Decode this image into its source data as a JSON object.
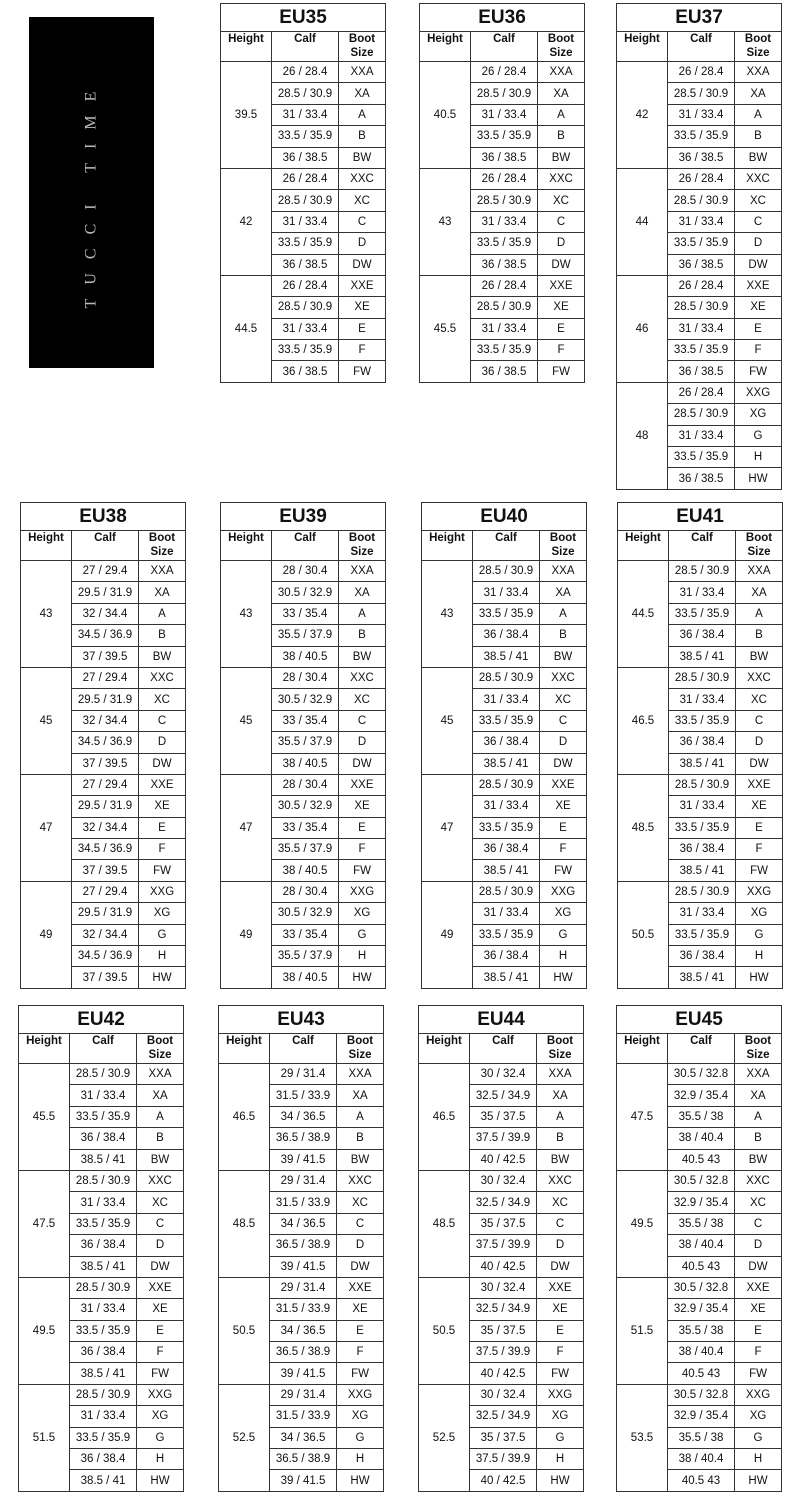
{
  "logo_text": "TUCCI TIME",
  "headers": {
    "height": "Height",
    "calf": "Calf",
    "boot_size": "Boot Size"
  },
  "tables": [
    {
      "title": "EU35",
      "calf_ranges": [
        "26 / 28.4",
        "28.5 / 30.9",
        "31 / 33.4",
        "33.5 / 35.9",
        "36 / 38.5"
      ],
      "groups": [
        {
          "height": "39.5",
          "sizes": [
            "XXA",
            "XA",
            "A",
            "B",
            "BW"
          ]
        },
        {
          "height": "42",
          "sizes": [
            "XXC",
            "XC",
            "C",
            "D",
            "DW"
          ]
        },
        {
          "height": "44.5",
          "sizes": [
            "XXE",
            "XE",
            "E",
            "F",
            "FW"
          ]
        }
      ]
    },
    {
      "title": "EU36",
      "calf_ranges": [
        "26 / 28.4",
        "28.5 / 30.9",
        "31 / 33.4",
        "33.5 / 35.9",
        "36 / 38.5"
      ],
      "groups": [
        {
          "height": "40.5",
          "sizes": [
            "XXA",
            "XA",
            "A",
            "B",
            "BW"
          ]
        },
        {
          "height": "43",
          "sizes": [
            "XXC",
            "XC",
            "C",
            "D",
            "DW"
          ]
        },
        {
          "height": "45.5",
          "sizes": [
            "XXE",
            "XE",
            "E",
            "F",
            "FW"
          ]
        }
      ]
    },
    {
      "title": "EU37",
      "calf_ranges": [
        "26 / 28.4",
        "28.5 / 30.9",
        "31 / 33.4",
        "33.5 / 35.9",
        "36 / 38.5"
      ],
      "groups": [
        {
          "height": "42",
          "sizes": [
            "XXA",
            "XA",
            "A",
            "B",
            "BW"
          ]
        },
        {
          "height": "44",
          "sizes": [
            "XXC",
            "XC",
            "C",
            "D",
            "DW"
          ]
        },
        {
          "height": "46",
          "sizes": [
            "XXE",
            "XE",
            "E",
            "F",
            "FW"
          ]
        },
        {
          "height": "48",
          "sizes": [
            "XXG",
            "XG",
            "G",
            "H",
            "HW"
          ]
        }
      ]
    },
    {
      "title": "EU38",
      "calf_ranges": [
        "27 / 29.4",
        "29.5 / 31.9",
        "32 / 34.4",
        "34.5 / 36.9",
        "37 / 39.5"
      ],
      "groups": [
        {
          "height": "43",
          "sizes": [
            "XXA",
            "XA",
            "A",
            "B",
            "BW"
          ]
        },
        {
          "height": "45",
          "sizes": [
            "XXC",
            "XC",
            "C",
            "D",
            "DW"
          ]
        },
        {
          "height": "47",
          "sizes": [
            "XXE",
            "XE",
            "E",
            "F",
            "FW"
          ]
        },
        {
          "height": "49",
          "sizes": [
            "XXG",
            "XG",
            "G",
            "H",
            "HW"
          ]
        }
      ]
    },
    {
      "title": "EU39",
      "calf_ranges": [
        "28 / 30.4",
        "30.5 / 32.9",
        "33 / 35.4",
        "35.5 / 37.9",
        "38 / 40.5"
      ],
      "groups": [
        {
          "height": "43",
          "sizes": [
            "XXA",
            "XA",
            "A",
            "B",
            "BW"
          ]
        },
        {
          "height": "45",
          "sizes": [
            "XXC",
            "XC",
            "C",
            "D",
            "DW"
          ]
        },
        {
          "height": "47",
          "sizes": [
            "XXE",
            "XE",
            "E",
            "F",
            "FW"
          ]
        },
        {
          "height": "49",
          "sizes": [
            "XXG",
            "XG",
            "G",
            "H",
            "HW"
          ]
        }
      ]
    },
    {
      "title": "EU40",
      "calf_ranges": [
        "28.5 / 30.9",
        "31 / 33.4",
        "33.5 / 35.9",
        "36 / 38.4",
        "38.5 / 41"
      ],
      "groups": [
        {
          "height": "43",
          "sizes": [
            "XXA",
            "XA",
            "A",
            "B",
            "BW"
          ]
        },
        {
          "height": "45",
          "sizes": [
            "XXC",
            "XC",
            "C",
            "D",
            "DW"
          ]
        },
        {
          "height": "47",
          "sizes": [
            "XXE",
            "XE",
            "E",
            "F",
            "FW"
          ]
        },
        {
          "height": "49",
          "sizes": [
            "XXG",
            "XG",
            "G",
            "H",
            "HW"
          ]
        }
      ]
    },
    {
      "title": "EU41",
      "calf_ranges": [
        "28.5 / 30.9",
        "31 / 33.4",
        "33.5 / 35.9",
        "36 / 38.4",
        "38.5 / 41"
      ],
      "groups": [
        {
          "height": "44.5",
          "sizes": [
            "XXA",
            "XA",
            "A",
            "B",
            "BW"
          ]
        },
        {
          "height": "46.5",
          "sizes": [
            "XXC",
            "XC",
            "C",
            "D",
            "DW"
          ]
        },
        {
          "height": "48.5",
          "sizes": [
            "XXE",
            "XE",
            "E",
            "F",
            "FW"
          ]
        },
        {
          "height": "50.5",
          "sizes": [
            "XXG",
            "XG",
            "G",
            "H",
            "HW"
          ]
        }
      ]
    },
    {
      "title": "EU42",
      "calf_ranges": [
        "28.5 / 30.9",
        "31 / 33.4",
        "33.5 / 35.9",
        "36 / 38.4",
        "38.5 / 41"
      ],
      "groups": [
        {
          "height": "45.5",
          "sizes": [
            "XXA",
            "XA",
            "A",
            "B",
            "BW"
          ]
        },
        {
          "height": "47.5",
          "sizes": [
            "XXC",
            "XC",
            "C",
            "D",
            "DW"
          ]
        },
        {
          "height": "49.5",
          "sizes": [
            "XXE",
            "XE",
            "E",
            "F",
            "FW"
          ]
        },
        {
          "height": "51.5",
          "sizes": [
            "XXG",
            "XG",
            "G",
            "H",
            "HW"
          ]
        }
      ]
    },
    {
      "title": "EU43",
      "calf_ranges": [
        "29 / 31.4",
        "31.5 / 33.9",
        "34 / 36.5",
        "36.5 / 38.9",
        "39 / 41.5"
      ],
      "groups": [
        {
          "height": "46.5",
          "sizes": [
            "XXA",
            "XA",
            "A",
            "B",
            "BW"
          ]
        },
        {
          "height": "48.5",
          "sizes": [
            "XXC",
            "XC",
            "C",
            "D",
            "DW"
          ]
        },
        {
          "height": "50.5",
          "sizes": [
            "XXE",
            "XE",
            "E",
            "F",
            "FW"
          ]
        },
        {
          "height": "52.5",
          "sizes": [
            "XXG",
            "XG",
            "G",
            "H",
            "HW"
          ]
        }
      ]
    },
    {
      "title": "EU44",
      "calf_ranges": [
        "30 / 32.4",
        "32.5 / 34.9",
        "35 / 37.5",
        "37.5 / 39.9",
        "40 / 42.5"
      ],
      "groups": [
        {
          "height": "46.5",
          "sizes": [
            "XXA",
            "XA",
            "A",
            "B",
            "BW"
          ]
        },
        {
          "height": "48.5",
          "sizes": [
            "XXC",
            "XC",
            "C",
            "D",
            "DW"
          ]
        },
        {
          "height": "50.5",
          "sizes": [
            "XXE",
            "XE",
            "E",
            "F",
            "FW"
          ]
        },
        {
          "height": "52.5",
          "sizes": [
            "XXG",
            "XG",
            "G",
            "H",
            "HW"
          ]
        }
      ]
    },
    {
      "title": "EU45",
      "calf_ranges": [
        "30.5 / 32.8",
        "32.9 / 35.4",
        "35.5 / 38",
        "38 / 40.4",
        "40.5 43"
      ],
      "groups": [
        {
          "height": "47.5",
          "sizes": [
            "XXA",
            "XA",
            "A",
            "B",
            "BW"
          ]
        },
        {
          "height": "49.5",
          "sizes": [
            "XXC",
            "XC",
            "C",
            "D",
            "DW"
          ]
        },
        {
          "height": "51.5",
          "sizes": [
            "XXE",
            "XE",
            "E",
            "F",
            "FW"
          ]
        },
        {
          "height": "53.5",
          "sizes": [
            "XXG",
            "XG",
            "G",
            "H",
            "HW"
          ]
        }
      ]
    }
  ]
}
